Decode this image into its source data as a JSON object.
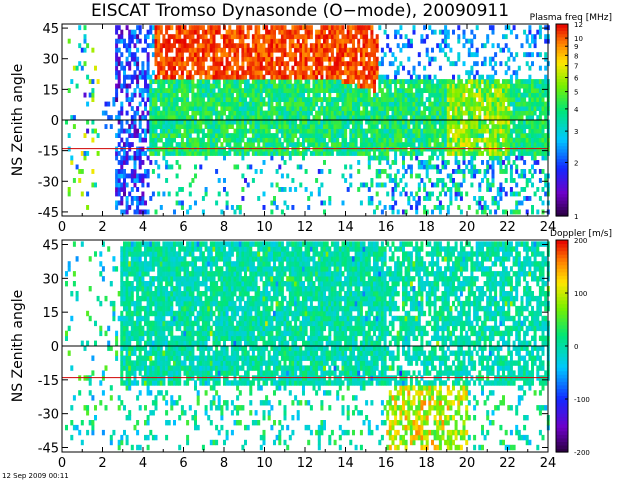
{
  "figure": {
    "title": "EISCAT Tromso Dynasonde (O−mode),  20090911",
    "footer_timestamp": "12 Sep 2009 00:11"
  },
  "chart_data": [
    {
      "type": "heatmap",
      "title": "EISCAT Tromso Dynasonde (O−mode),  20090911",
      "xlabel": "",
      "ylabel": "NS Zenith angle",
      "xlim": [
        0,
        24
      ],
      "ylim": [
        -47,
        47
      ],
      "x_ticks": [
        0,
        2,
        4,
        6,
        8,
        10,
        12,
        14,
        16,
        18,
        20,
        22,
        24
      ],
      "y_ticks": [
        -45,
        -30,
        -15,
        0,
        15,
        30,
        45
      ],
      "reference_lines": [
        {
          "y": 0,
          "color": "#000000"
        },
        {
          "y": -14,
          "color": "#d00000"
        }
      ],
      "colorbar": {
        "label": "Plasma freq [MHz]",
        "scale": "log",
        "range": [
          1,
          12
        ],
        "ticks": [
          1,
          2,
          3,
          4,
          5,
          6,
          7,
          8,
          9,
          10,
          12
        ]
      },
      "regions": [
        {
          "description_value": "high plasma freq (~10 MHz) upper band",
          "x": [
            4.5,
            15.5
          ],
          "y": [
            20,
            47
          ],
          "value": 11
        },
        {
          "description_value": "main green band",
          "x": [
            4.0,
            24.0
          ],
          "y": [
            -15,
            20
          ],
          "value": 4
        },
        {
          "description_value": "low values early morning",
          "x": [
            2.0,
            4.5
          ],
          "y": [
            -47,
            47
          ],
          "value": 1.8
        }
      ]
    },
    {
      "type": "heatmap",
      "title": "",
      "xlabel": "",
      "ylabel": "NS Zenith angle",
      "xlim": [
        0,
        24
      ],
      "ylim": [
        -47,
        47
      ],
      "x_ticks": [
        0,
        2,
        4,
        6,
        8,
        10,
        12,
        14,
        16,
        18,
        20,
        22,
        24
      ],
      "y_ticks": [
        -45,
        -30,
        -15,
        0,
        15,
        30,
        45
      ],
      "reference_lines": [
        {
          "y": 0,
          "color": "#000000"
        },
        {
          "y": -14,
          "color": "#d00000"
        }
      ],
      "colorbar": {
        "label": "Doppler [m/s]",
        "scale": "linear",
        "range": [
          -200,
          200
        ],
        "ticks": [
          -200,
          -100,
          0,
          100,
          200
        ]
      },
      "regions": [
        {
          "description_value": "main near-zero doppler band",
          "x": [
            2.8,
            24.0
          ],
          "y": [
            -15,
            47
          ],
          "value": 0
        },
        {
          "description_value": "positive doppler evening",
          "x": [
            16.0,
            20.0
          ],
          "y": [
            -45,
            -10
          ],
          "value": 120
        }
      ]
    }
  ]
}
